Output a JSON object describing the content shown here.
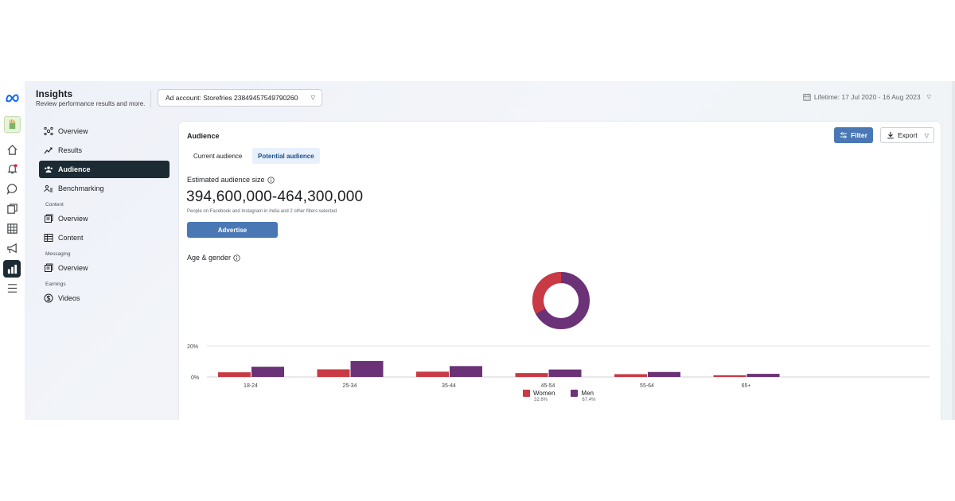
{
  "app": {
    "colors": {
      "meta_blue": "#0866ff",
      "nav_active": "#1c2b33",
      "primary_button": "#4a78b5",
      "women": "#c93a44",
      "men": "#6b3277"
    }
  },
  "rail": {
    "items": [
      "meta-logo-icon",
      "storefries-avatar-icon",
      "home-icon",
      "notifications-icon",
      "messages-icon",
      "pages-icon",
      "table-icon",
      "ads-megaphone-icon",
      "insights-icon",
      "menu-icon"
    ]
  },
  "header": {
    "title": "Insights",
    "subtitle": "Review performance results and more.",
    "ad_account": "Ad account: Storefries 2384945754979026​0",
    "date_range": "Lifetime: 17 Jul 2020 - 16 Aug 2023"
  },
  "nav": {
    "items": [
      {
        "label": "Overview",
        "icon": "overview-icon"
      },
      {
        "label": "Results",
        "icon": "results-icon"
      },
      {
        "label": "Audience",
        "icon": "audience-icon",
        "active": true
      },
      {
        "label": "Benchmarking",
        "icon": "benchmarking-icon"
      }
    ],
    "content_section": "Content",
    "content_items": [
      {
        "label": "Overview",
        "icon": "overview-icon"
      },
      {
        "label": "Content",
        "icon": "table-icon"
      }
    ],
    "messaging_section": "Messaging",
    "messaging_items": [
      {
        "label": "Overview",
        "icon": "overview-icon"
      }
    ],
    "earnings_section": "Earnings",
    "earnings_items": [
      {
        "label": "Videos",
        "icon": "dollar-icon"
      }
    ]
  },
  "card": {
    "title": "Audience",
    "filter_label": "Filter",
    "export_label": "Export",
    "tabs": [
      {
        "label": "Current audience",
        "active": false
      },
      {
        "label": "Potential audience",
        "active": true
      }
    ],
    "estimated_label": "Estimated audience size",
    "audience_size": "394,600,000-464,300,000",
    "people_note": "People on Facebook and Instagram in India and 2 other filters selected",
    "advertise_label": "Advertise",
    "age_gender_label": "Age & gender"
  },
  "chart_data": {
    "type": "bar",
    "categories": [
      "18-24",
      "25-34",
      "35-44",
      "45-54",
      "55-64",
      "65+"
    ],
    "series": [
      {
        "name": "Women",
        "values": [
          3.0,
          4.9,
          3.4,
          2.5,
          1.8,
          1.1
        ]
      },
      {
        "name": "Men",
        "values": [
          6.6,
          10.3,
          7.0,
          4.8,
          3.2,
          2.0
        ]
      }
    ],
    "ylim": [
      0,
      20
    ],
    "y_ticks": [
      "0%",
      "20%"
    ],
    "legend": [
      {
        "name": "Women",
        "share": "32.6%"
      },
      {
        "name": "Men",
        "share": "67.4%"
      }
    ],
    "donut": {
      "women": 32.6,
      "men": 67.4
    }
  }
}
